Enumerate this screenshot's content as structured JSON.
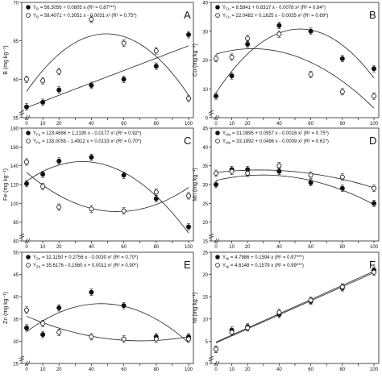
{
  "figure": {
    "x_axis_label_bottom": ""
  },
  "chart_data": [
    {
      "panel_letter": "A",
      "type": "scatter",
      "ylabel": "B (mg kg⁻¹)",
      "xlim": [
        0,
        100
      ],
      "ylim": [
        55,
        70
      ],
      "yticks": [
        55,
        60,
        65,
        70
      ],
      "xticks": [
        0,
        10,
        20,
        30,
        40,
        50,
        60,
        70,
        80,
        90,
        100
      ],
      "series": [
        {
          "marker": "filled",
          "x": [
            0,
            10,
            20,
            40,
            60,
            80,
            100
          ],
          "y": [
            56.4,
            57.0,
            58.6,
            59.2,
            60.0,
            61.7,
            65.8
          ],
          "fit": {
            "type": "linear",
            "c": [
              56.3056,
              0.0805
            ]
          }
        },
        {
          "marker": "open",
          "x": [
            0,
            10,
            20,
            40,
            60,
            80,
            100
          ],
          "y": [
            60.0,
            59.8,
            61.0,
            67.8,
            64.7,
            63.7,
            57.5
          ],
          "fit": {
            "type": "quadratic",
            "c": [
              58.4071,
              0.3051,
              -0.0031
            ]
          }
        }
      ],
      "legend": [
        {
          "symbol": "Y",
          "subscript": "B",
          "equation": " = 56.3056 + 0.0805 x",
          "r2": "(R² = 0.87***)"
        },
        {
          "symbol": "Y",
          "subscript": "B",
          "equation": " = 58.4071 + 0.3051 x - 0.0031 x²",
          "r2": "(R² = 0.75*)"
        }
      ]
    },
    {
      "panel_letter": "B",
      "type": "scatter",
      "ylabel": "Cu (mg kg⁻¹)",
      "xlim": [
        0,
        100
      ],
      "ylim": [
        0,
        40
      ],
      "yticks": [
        0,
        10,
        20,
        30,
        40
      ],
      "xticks": [
        0,
        10,
        20,
        30,
        40,
        50,
        60,
        70,
        80,
        90,
        100
      ],
      "series": [
        {
          "marker": "filled",
          "x": [
            0,
            10,
            20,
            40,
            60,
            80,
            100
          ],
          "y": [
            7.5,
            14.5,
            25.5,
            32.0,
            30.0,
            20.5,
            17.0
          ],
          "fit": {
            "type": "quadratic",
            "c": [
              8.5841,
              0.8317,
              -0.0078
            ]
          }
        },
        {
          "marker": "open",
          "x": [
            0,
            10,
            20,
            40,
            60,
            80,
            100
          ],
          "y": [
            20.5,
            21.0,
            27.5,
            29.0,
            15.0,
            9.0,
            7.5
          ],
          "fit": {
            "type": "quadratic",
            "c": [
              22.0482,
              0.1625,
              -0.0035
            ]
          }
        }
      ],
      "legend": [
        {
          "symbol": "Y",
          "subscript": "Cu",
          "equation": " = 8.5841 + 0.8317 x - 0.0078 x²",
          "r2": "(R² = 0.84*)"
        },
        {
          "symbol": "Y",
          "subscript": "Cu",
          "equation": " = 22.0482 + 0.1625 x - 0.0035 x²",
          "r2": "(R² = 0.69*)"
        }
      ]
    },
    {
      "panel_letter": "C",
      "type": "scatter",
      "ylabel": "Fe (mg kg⁻¹)",
      "xlim": [
        0,
        100
      ],
      "ylim": [
        60,
        180
      ],
      "yticks": [
        60,
        80,
        100,
        120,
        140,
        160,
        180
      ],
      "xticks": [
        0,
        10,
        20,
        30,
        40,
        50,
        60,
        70,
        80,
        90,
        100
      ],
      "series": [
        {
          "marker": "filled",
          "x": [
            0,
            10,
            20,
            40,
            60,
            80,
            100
          ],
          "y": [
            121,
            131,
            145,
            149,
            130,
            105,
            75
          ],
          "fit": {
            "type": "quadratic",
            "c": [
              123.4686,
              1.219,
              -0.0177
            ]
          }
        },
        {
          "marker": "open",
          "x": [
            0,
            10,
            20,
            40,
            60,
            80,
            100
          ],
          "y": [
            144,
            118,
            96,
            94,
            92,
            112,
            108
          ],
          "fit": {
            "type": "quadratic",
            "c": [
              133.0055,
              -1.4912,
              0.0133
            ]
          }
        }
      ],
      "legend": [
        {
          "symbol": "Y",
          "subscript": "Fe",
          "equation": " = 123.4686 + 1.2190 x - 0.0177 x²",
          "r2": "(R² = 0.92*)"
        },
        {
          "symbol": "Y",
          "subscript": "Fe",
          "equation": " = 133.0055 - 1.4912 x + 0.0133 x²",
          "r2": "(R² = 0.70*)"
        }
      ]
    },
    {
      "panel_letter": "D",
      "type": "scatter",
      "ylabel": "Mn (mg kg⁻¹)",
      "xlim": [
        0,
        100
      ],
      "ylim": [
        15,
        45
      ],
      "yticks": [
        15,
        20,
        25,
        30,
        35,
        40,
        45
      ],
      "xticks": [
        0,
        10,
        20,
        30,
        40,
        50,
        60,
        70,
        80,
        90,
        100
      ],
      "series": [
        {
          "marker": "filled",
          "x": [
            0,
            10,
            20,
            40,
            60,
            80,
            100
          ],
          "y": [
            30.0,
            34.0,
            34.0,
            33.5,
            30.5,
            29.0,
            25.0
          ],
          "fit": {
            "type": "quadratic",
            "c": [
              31.0995,
              0.0957,
              -0.0016
            ]
          }
        },
        {
          "marker": "open",
          "x": [
            0,
            10,
            20,
            40,
            60,
            80,
            100
          ],
          "y": [
            33.0,
            33.5,
            33.0,
            35.0,
            32.5,
            32.0,
            29.0
          ],
          "fit": {
            "type": "quadratic",
            "c": [
              33.1892,
              0.0496,
              -0.0009
            ]
          }
        }
      ],
      "legend": [
        {
          "symbol": "Y",
          "subscript": "Mn",
          "equation": " = 31.0995 + 0.0957 x - 0.0016 x²",
          "r2": "(R² = 0.75*)"
        },
        {
          "symbol": "Y",
          "subscript": "Mn",
          "equation": " = 33.1892 + 0.0496 x - 0.0009 x²",
          "r2": "(R² = 0.61*)"
        }
      ]
    },
    {
      "panel_letter": "E",
      "type": "scatter",
      "ylabel": "Zn (mg kg⁻¹)",
      "xlim": [
        0,
        100
      ],
      "ylim": [
        25,
        50
      ],
      "yticks": [
        25,
        30,
        35,
        40,
        45,
        50
      ],
      "xticks": [
        0,
        10,
        20,
        30,
        40,
        50,
        60,
        70,
        80,
        90,
        100
      ],
      "series": [
        {
          "marker": "filled",
          "x": [
            0,
            10,
            20,
            40,
            60,
            80,
            100
          ],
          "y": [
            33.0,
            31.5,
            37.5,
            41.0,
            38.0,
            31.0,
            31.0
          ],
          "fit": {
            "type": "quadratic",
            "c": [
              32.115,
              0.2756,
              -0.003
            ]
          }
        },
        {
          "marker": "open",
          "x": [
            0,
            10,
            20,
            40,
            60,
            80,
            100
          ],
          "y": [
            37.0,
            34.0,
            32.0,
            31.0,
            30.5,
            30.5,
            30.5
          ],
          "fit": {
            "type": "quadratic",
            "c": [
              35.6176,
              -0.156,
              0.0011
            ]
          }
        }
      ],
      "legend": [
        {
          "symbol": "Y",
          "subscript": "Zn",
          "equation": " = 32.1150 + 0.2756 x - 0.0030 x²",
          "r2": "(R² = 0.70*)"
        },
        {
          "symbol": "Y",
          "subscript": "Zn",
          "equation": " = 35.6176 - 0.1560 x + 0.0011 x²",
          "r2": "(R² = 0.90*)"
        }
      ]
    },
    {
      "panel_letter": "F",
      "type": "scatter",
      "ylabel": "Ni (mg kg⁻¹)",
      "xlim": [
        0,
        100
      ],
      "ylim": [
        0,
        25
      ],
      "yticks": [
        0,
        5,
        10,
        15,
        20,
        25
      ],
      "xticks": [
        0,
        10,
        20,
        30,
        40,
        50,
        60,
        70,
        80,
        90,
        100
      ],
      "series": [
        {
          "marker": "filled",
          "x": [
            0,
            10,
            20,
            40,
            60,
            80,
            100
          ],
          "y": [
            3.2,
            7.5,
            8.2,
            11.0,
            14.0,
            17.0,
            21.0
          ],
          "fit": {
            "type": "linear",
            "c": [
              4.7986,
              0.1594
            ]
          }
        },
        {
          "marker": "open",
          "x": [
            0,
            10,
            20,
            40,
            60,
            80,
            100
          ],
          "y": [
            3.2,
            7.0,
            8.0,
            11.5,
            14.2,
            17.2,
            20.5
          ],
          "fit": {
            "type": "linear",
            "c": [
              4.6148,
              0.1579
            ]
          }
        }
      ],
      "legend": [
        {
          "symbol": "Y",
          "subscript": "Ni",
          "equation": " = 4.7986 + 0.1594 x",
          "r2": "(R² = 0.97***)"
        },
        {
          "symbol": "Y",
          "subscript": "Ni",
          "equation": " = 4.6148 + 0.1579 x",
          "r2": "(R² = 0.99***)"
        }
      ]
    }
  ]
}
